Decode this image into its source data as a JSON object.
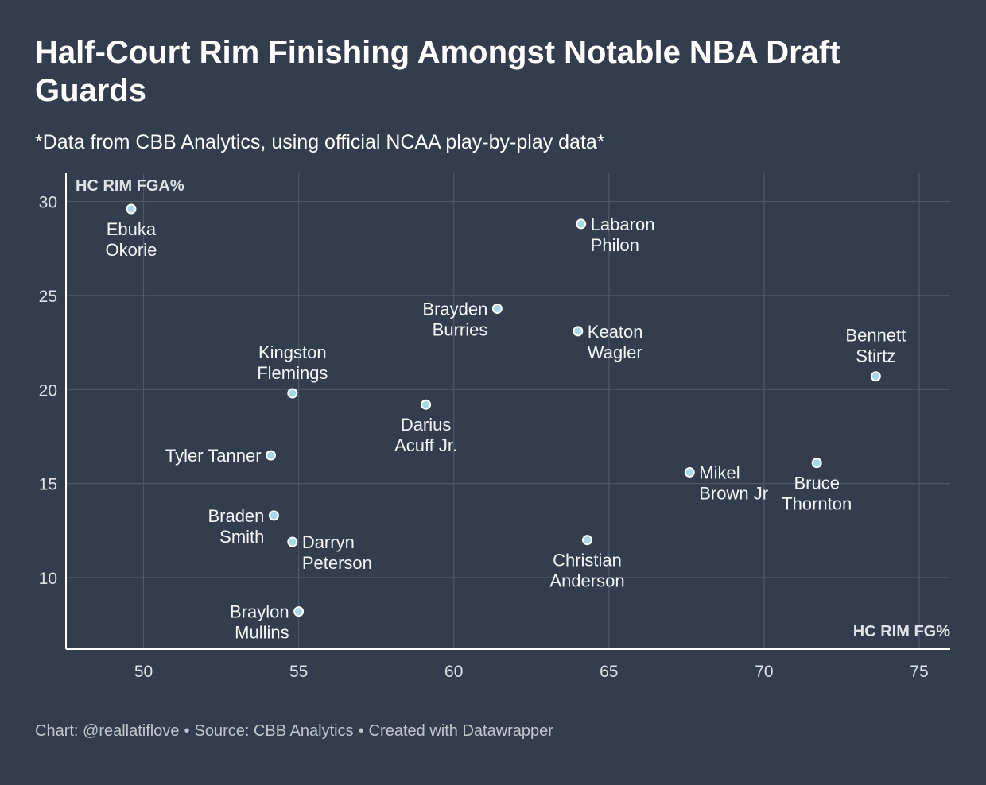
{
  "title": "Half-Court Rim Finishing Amongst Notable NBA Draft Guards",
  "subtitle": "*Data from CBB Analytics, using official NCAA play-by-play data*",
  "footer": {
    "chart_credit": "Chart: @reallatiflove",
    "source": "Source: CBB Analytics",
    "created_with": "Created with Datawrapper",
    "separator": "•"
  },
  "colors": {
    "background": "#333d4d",
    "gridline": "#4f5869",
    "axis_line": "#ffffff",
    "point_fill": "#a8d8e6",
    "point_stroke": "#ffffff"
  },
  "chart_data": {
    "type": "scatter",
    "xlabel": "HC RIM FG%",
    "ylabel": "HC RIM FGA%",
    "xlim": [
      47.5,
      76
    ],
    "ylim": [
      6.2,
      31.5
    ],
    "xticks": [
      50,
      55,
      60,
      65,
      70,
      75
    ],
    "yticks": [
      10,
      15,
      20,
      25,
      30
    ],
    "grid": true,
    "points": [
      {
        "name": "Ebuka Okorie",
        "lines": [
          "Ebuka",
          "Okorie"
        ],
        "x": 49.6,
        "y": 29.6,
        "label_pos": "below"
      },
      {
        "name": "Labaron Philon",
        "lines": [
          "Labaron",
          "Philon"
        ],
        "x": 64.1,
        "y": 28.8,
        "label_pos": "right"
      },
      {
        "name": "Brayden Burries",
        "lines": [
          "Brayden",
          "Burries"
        ],
        "x": 61.4,
        "y": 24.3,
        "label_pos": "left"
      },
      {
        "name": "Keaton Wagler",
        "lines": [
          "Keaton",
          "Wagler"
        ],
        "x": 64.0,
        "y": 23.1,
        "label_pos": "right"
      },
      {
        "name": "Bennett Stirtz",
        "lines": [
          "Bennett",
          "Stirtz"
        ],
        "x": 73.6,
        "y": 20.7,
        "label_pos": "above"
      },
      {
        "name": "Kingston Flemings",
        "lines": [
          "Kingston",
          "Flemings"
        ],
        "x": 54.8,
        "y": 19.8,
        "label_pos": "above"
      },
      {
        "name": "Darius Acuff Jr.",
        "lines": [
          "Darius",
          "Acuff Jr."
        ],
        "x": 59.1,
        "y": 19.2,
        "label_pos": "below"
      },
      {
        "name": "Tyler Tanner",
        "lines": [
          "Tyler Tanner"
        ],
        "x": 54.1,
        "y": 16.5,
        "label_pos": "left"
      },
      {
        "name": "Bruce Thornton",
        "lines": [
          "Bruce",
          "Thornton"
        ],
        "x": 71.7,
        "y": 16.1,
        "label_pos": "below"
      },
      {
        "name": "Mikel Brown Jr",
        "lines": [
          "Mikel",
          "Brown Jr"
        ],
        "x": 67.6,
        "y": 15.6,
        "label_pos": "right"
      },
      {
        "name": "Braden Smith",
        "lines": [
          "Braden",
          "Smith"
        ],
        "x": 54.2,
        "y": 13.3,
        "label_pos": "left"
      },
      {
        "name": "Darryn Peterson",
        "lines": [
          "Darryn",
          "Peterson"
        ],
        "x": 54.8,
        "y": 11.9,
        "label_pos": "right"
      },
      {
        "name": "Christian Anderson",
        "lines": [
          "Christian",
          "Anderson"
        ],
        "x": 64.3,
        "y": 12.0,
        "label_pos": "below"
      },
      {
        "name": "Braylon Mullins",
        "lines": [
          "Braylon",
          "Mullins"
        ],
        "x": 55.0,
        "y": 8.2,
        "label_pos": "left"
      }
    ]
  }
}
